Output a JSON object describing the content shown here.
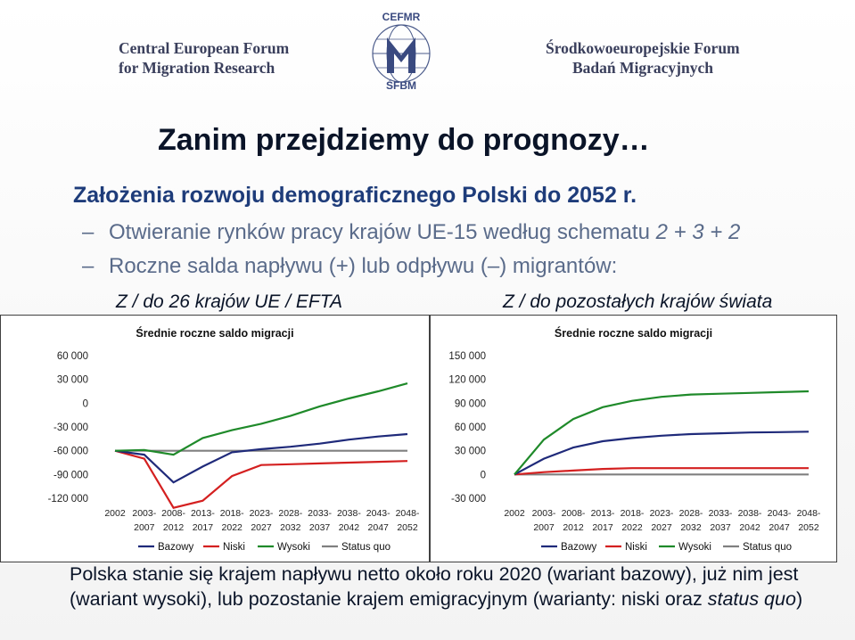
{
  "header": {
    "left_line1": "Central European Forum",
    "left_line2": "for Migration Research",
    "right_line1": "Środkowoeuropejskie Forum",
    "right_line2": "Badań Migracyjnych",
    "logo_top": "CEFMR",
    "logo_bottom": "ŚFBM"
  },
  "title": "Zanim przejdziemy do prognozy…",
  "subtitle": "Założenia rozwoju demograficznego Polski do 2052 r.",
  "bullets": [
    {
      "pre": "Otwieranie rynków pracy krajów UE-15 według schematu ",
      "emph": "2 + 3 + 2"
    },
    {
      "pre": "Roczne salda napływu (+) lub odpływu (",
      "dash": "–",
      "post": ") migrantów:"
    }
  ],
  "panel_labels": {
    "left": "Z / do 26 krajów UE / EFTA",
    "right": "Z / do pozostałych krajów świata"
  },
  "conclusion": {
    "text": "Polska stanie się krajem napływu netto około roku 2020 (wariant bazowy), już nim jest (wariant wysoki), lub pozostanie krajem emigracyjnym (warianty: niski oraz ",
    "emph": "status quo",
    "end": ")"
  },
  "colors": {
    "bazowy": "#1f2a7a",
    "niski": "#d42020",
    "wysoki": "#1f8a2a",
    "status_quo": "#808080"
  },
  "chart_data": [
    {
      "type": "line",
      "title": "Średnie roczne saldo migracji",
      "categories": [
        [
          "2002"
        ],
        [
          "2003-",
          "2007"
        ],
        [
          "2008-",
          "2012"
        ],
        [
          "2013-",
          "2017"
        ],
        [
          "2018-",
          "2022"
        ],
        [
          "2023-",
          "2027"
        ],
        [
          "2028-",
          "2032"
        ],
        [
          "2033-",
          "2037"
        ],
        [
          "2038-",
          "2042"
        ],
        [
          "2043-",
          "2047"
        ],
        [
          "2048-",
          "2052"
        ]
      ],
      "ylim": [
        -120000,
        60000
      ],
      "yticks": [
        60000,
        30000,
        0,
        -30000,
        -60000,
        -90000,
        -120000
      ],
      "ytick_labels": [
        "60 000",
        "30 000",
        "0",
        "-30 000",
        "-60 000",
        "-90 000",
        "-120 000"
      ],
      "series": [
        {
          "name": "Bazowy",
          "color": "#1f2a7a",
          "values": [
            -60000,
            -65000,
            -100000,
            -80000,
            -62000,
            -58000,
            -55000,
            -51000,
            -46000,
            -42000,
            -39000
          ]
        },
        {
          "name": "Niski",
          "color": "#d42020",
          "values": [
            -60000,
            -70000,
            -132000,
            -123000,
            -92000,
            -78000,
            -77000,
            -76000,
            -75000,
            -74000,
            -73000
          ]
        },
        {
          "name": "Wysoki",
          "color": "#1f8a2a",
          "values": [
            -60000,
            -59000,
            -65000,
            -44000,
            -34000,
            -26000,
            -16000,
            -4000,
            6000,
            15000,
            25000
          ]
        },
        {
          "name": "Status quo",
          "color": "#808080",
          "values": [
            -60000,
            -60000,
            -60000,
            -60000,
            -60000,
            -60000,
            -60000,
            -60000,
            -60000,
            -60000,
            -60000
          ]
        }
      ],
      "legend": [
        "Bazowy",
        "Niski",
        "Wysoki",
        "Status quo"
      ],
      "legend_position": "bottom"
    },
    {
      "type": "line",
      "title": "Średnie roczne saldo migracji",
      "categories": [
        [
          "2002"
        ],
        [
          "2003-",
          "2007"
        ],
        [
          "2008-",
          "2012"
        ],
        [
          "2013-",
          "2017"
        ],
        [
          "2018-",
          "2022"
        ],
        [
          "2023-",
          "2027"
        ],
        [
          "2028-",
          "2032"
        ],
        [
          "2033-",
          "2037"
        ],
        [
          "2038-",
          "2042"
        ],
        [
          "2043-",
          "2047"
        ],
        [
          "2048-",
          "2052"
        ]
      ],
      "ylim": [
        -30000,
        150000
      ],
      "yticks": [
        150000,
        120000,
        90000,
        60000,
        30000,
        0,
        -30000
      ],
      "ytick_labels": [
        "150 000",
        "120 000",
        "90 000",
        "60 000",
        "30 000",
        "0",
        "-30 000"
      ],
      "series": [
        {
          "name": "Bazowy",
          "color": "#1f2a7a",
          "values": [
            0,
            20000,
            34000,
            42000,
            46000,
            49000,
            51000,
            52000,
            53000,
            53500,
            54000
          ]
        },
        {
          "name": "Niski",
          "color": "#d42020",
          "values": [
            0,
            3000,
            5000,
            7000,
            8000,
            8000,
            8000,
            8000,
            8000,
            8000,
            8000
          ]
        },
        {
          "name": "Wysoki",
          "color": "#1f8a2a",
          "values": [
            0,
            44000,
            70000,
            85000,
            93000,
            98000,
            101000,
            102000,
            103000,
            104000,
            105000
          ]
        },
        {
          "name": "Status quo",
          "color": "#808080",
          "values": [
            0,
            0,
            0,
            0,
            0,
            0,
            0,
            0,
            0,
            0,
            0
          ]
        }
      ],
      "legend": [
        "Bazowy",
        "Niski",
        "Wysoki",
        "Status quo"
      ],
      "legend_position": "bottom"
    }
  ]
}
